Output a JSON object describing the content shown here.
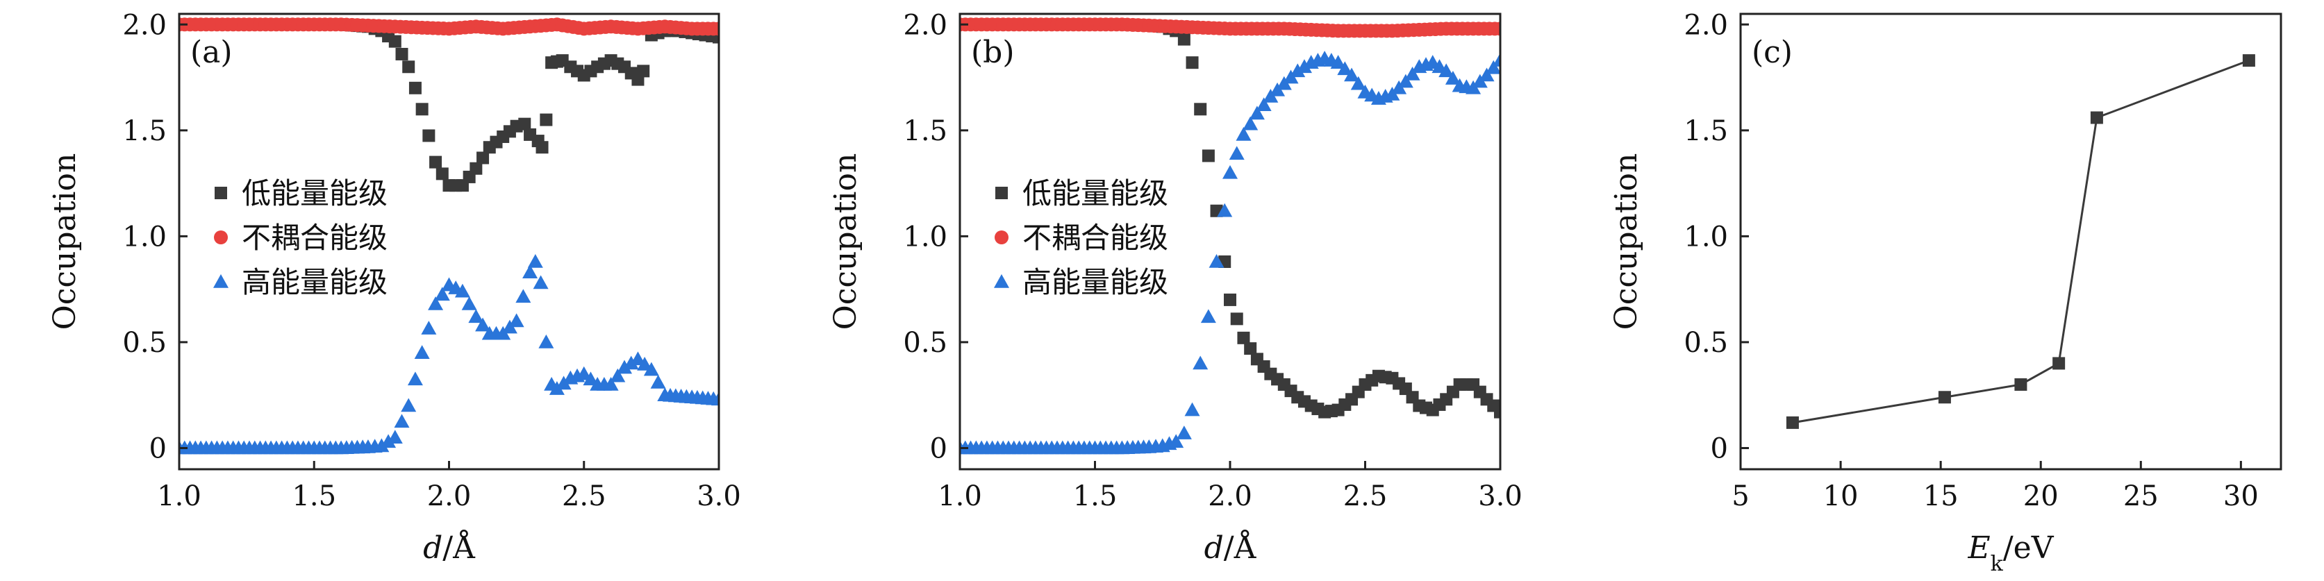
{
  "figure": {
    "background": "#ffffff"
  },
  "chart_data": [
    {
      "type": "scatter",
      "panel_label": "(a)",
      "xlabel": "d/Å",
      "xlabel_parts": {
        "var": "d",
        "unit": "/Å"
      },
      "ylabel": "Occupation",
      "xlim": [
        1.0,
        3.0
      ],
      "ylim": [
        -0.1,
        2.05
      ],
      "xticks": [
        1.0,
        1.5,
        2.0,
        2.5,
        3.0
      ],
      "xtick_labels": [
        "1.0",
        "1.5",
        "2.0",
        "2.5",
        "3.0"
      ],
      "yticks": [
        0,
        0.5,
        1.0,
        1.5,
        2.0
      ],
      "ytick_labels": [
        "0",
        "0.5",
        "1.0",
        "1.5",
        "2.0"
      ],
      "legend_position": "middle-left",
      "series": [
        {
          "name": "低能量能级",
          "marker": "square",
          "color": "#3a3a3a",
          "x": [
            1.0,
            1.1,
            1.2,
            1.3,
            1.4,
            1.5,
            1.6,
            1.7,
            1.75,
            1.8,
            1.85,
            1.9,
            1.95,
            2.0,
            2.05,
            2.1,
            2.15,
            2.2,
            2.25,
            2.28,
            2.3,
            2.33,
            2.345,
            2.36,
            2.38,
            2.42,
            2.45,
            2.5,
            2.55,
            2.6,
            2.65,
            2.7,
            2.72,
            2.75,
            2.8,
            2.85,
            2.9,
            2.95,
            3.0
          ],
          "y": [
            2.0,
            2.0,
            2.0,
            2.0,
            2.0,
            2.0,
            2.0,
            1.99,
            1.97,
            1.92,
            1.8,
            1.6,
            1.35,
            1.24,
            1.24,
            1.32,
            1.42,
            1.47,
            1.52,
            1.53,
            1.48,
            1.45,
            1.42,
            1.55,
            1.82,
            1.83,
            1.8,
            1.76,
            1.8,
            1.83,
            1.8,
            1.74,
            1.78,
            1.95,
            1.97,
            1.97,
            1.96,
            1.95,
            1.94
          ]
        },
        {
          "name": "不耦合能级",
          "marker": "circle",
          "color": "#e8413e",
          "x": [
            1.0,
            1.2,
            1.4,
            1.6,
            1.8,
            2.0,
            2.1,
            2.2,
            2.3,
            2.4,
            2.5,
            2.6,
            2.7,
            2.8,
            2.9,
            3.0
          ],
          "y": [
            2.0,
            2.0,
            2.0,
            2.0,
            1.99,
            1.98,
            1.99,
            1.98,
            1.99,
            2.0,
            1.98,
            1.99,
            1.98,
            1.99,
            1.98,
            1.98
          ]
        },
        {
          "name": "高能量能级",
          "marker": "triangle",
          "color": "#2a75d9",
          "x": [
            1.0,
            1.2,
            1.4,
            1.6,
            1.7,
            1.75,
            1.8,
            1.85,
            1.9,
            1.95,
            2.0,
            2.05,
            2.1,
            2.15,
            2.2,
            2.25,
            2.3,
            2.32,
            2.34,
            2.36,
            2.38,
            2.4,
            2.45,
            2.5,
            2.55,
            2.6,
            2.65,
            2.7,
            2.75,
            2.8,
            2.9,
            3.0
          ],
          "y": [
            0.0,
            0.0,
            0.0,
            0.0,
            0.005,
            0.01,
            0.05,
            0.2,
            0.45,
            0.68,
            0.77,
            0.74,
            0.62,
            0.54,
            0.54,
            0.6,
            0.83,
            0.88,
            0.78,
            0.5,
            0.3,
            0.28,
            0.33,
            0.35,
            0.3,
            0.3,
            0.38,
            0.42,
            0.37,
            0.25,
            0.24,
            0.23
          ]
        }
      ]
    },
    {
      "type": "scatter",
      "panel_label": "(b)",
      "xlabel": "d/Å",
      "xlabel_parts": {
        "var": "d",
        "unit": "/Å"
      },
      "ylabel": "Occupation",
      "xlim": [
        1.0,
        3.0
      ],
      "ylim": [
        -0.1,
        2.05
      ],
      "xticks": [
        1.0,
        1.5,
        2.0,
        2.5,
        3.0
      ],
      "xtick_labels": [
        "1.0",
        "1.5",
        "2.0",
        "2.5",
        "3.0"
      ],
      "yticks": [
        0,
        0.5,
        1.0,
        1.5,
        2.0
      ],
      "ytick_labels": [
        "0",
        "0.5",
        "1.0",
        "1.5",
        "2.0"
      ],
      "legend_position": "middle-left",
      "series": [
        {
          "name": "低能量能级",
          "marker": "square",
          "color": "#3a3a3a",
          "x": [
            1.0,
            1.2,
            1.4,
            1.6,
            1.7,
            1.75,
            1.8,
            1.83,
            1.86,
            1.89,
            1.92,
            1.95,
            1.98,
            2.0,
            2.05,
            2.1,
            2.15,
            2.2,
            2.25,
            2.3,
            2.35,
            2.4,
            2.45,
            2.5,
            2.55,
            2.6,
            2.65,
            2.7,
            2.75,
            2.8,
            2.85,
            2.9,
            2.95,
            3.0
          ],
          "y": [
            2.0,
            2.0,
            2.0,
            2.0,
            1.995,
            1.99,
            1.97,
            1.93,
            1.82,
            1.6,
            1.38,
            1.12,
            0.88,
            0.7,
            0.52,
            0.42,
            0.35,
            0.3,
            0.24,
            0.2,
            0.17,
            0.18,
            0.23,
            0.3,
            0.34,
            0.33,
            0.28,
            0.2,
            0.18,
            0.23,
            0.3,
            0.3,
            0.23,
            0.17
          ]
        },
        {
          "name": "不耦合能级",
          "marker": "circle",
          "color": "#e8413e",
          "x": [
            1.0,
            1.2,
            1.4,
            1.6,
            1.8,
            2.0,
            2.2,
            2.4,
            2.6,
            2.8,
            3.0
          ],
          "y": [
            2.0,
            2.0,
            2.0,
            2.0,
            1.99,
            1.98,
            1.98,
            1.97,
            1.97,
            1.98,
            1.98
          ]
        },
        {
          "name": "高能量能级",
          "marker": "triangle",
          "color": "#2a75d9",
          "x": [
            1.0,
            1.2,
            1.4,
            1.6,
            1.7,
            1.75,
            1.8,
            1.83,
            1.86,
            1.89,
            1.92,
            1.95,
            1.98,
            2.0,
            2.05,
            2.1,
            2.15,
            2.2,
            2.25,
            2.3,
            2.35,
            2.4,
            2.45,
            2.5,
            2.55,
            2.6,
            2.65,
            2.7,
            2.75,
            2.8,
            2.85,
            2.9,
            2.95,
            3.0
          ],
          "y": [
            0.0,
            0.0,
            0.0,
            0.0,
            0.005,
            0.01,
            0.03,
            0.07,
            0.18,
            0.4,
            0.62,
            0.88,
            1.12,
            1.3,
            1.48,
            1.58,
            1.66,
            1.72,
            1.78,
            1.82,
            1.84,
            1.82,
            1.76,
            1.68,
            1.65,
            1.67,
            1.73,
            1.8,
            1.82,
            1.78,
            1.71,
            1.7,
            1.76,
            1.83
          ]
        }
      ]
    },
    {
      "type": "line",
      "panel_label": "(c)",
      "xlabel": "Ek/eV",
      "xlabel_parts": {
        "var": "E",
        "sub": "k",
        "unit": "/eV"
      },
      "ylabel": "Occupation",
      "xlim": [
        5,
        32
      ],
      "ylim": [
        -0.1,
        2.05
      ],
      "xticks": [
        5,
        10,
        15,
        20,
        25,
        30
      ],
      "xtick_labels": [
        "5",
        "10",
        "15",
        "20",
        "25",
        "30"
      ],
      "yticks": [
        0,
        0.5,
        1.0,
        1.5,
        2.0
      ],
      "ytick_labels": [
        "0",
        "0.5",
        "1.0",
        "1.5",
        "2.0"
      ],
      "series": [
        {
          "name": "occupation",
          "marker": "square",
          "color": "#3a3a3a",
          "x": [
            7.6,
            15.2,
            19.0,
            20.9,
            22.8,
            30.4
          ],
          "y": [
            0.12,
            0.24,
            0.3,
            0.4,
            1.56,
            1.83
          ]
        }
      ]
    }
  ]
}
